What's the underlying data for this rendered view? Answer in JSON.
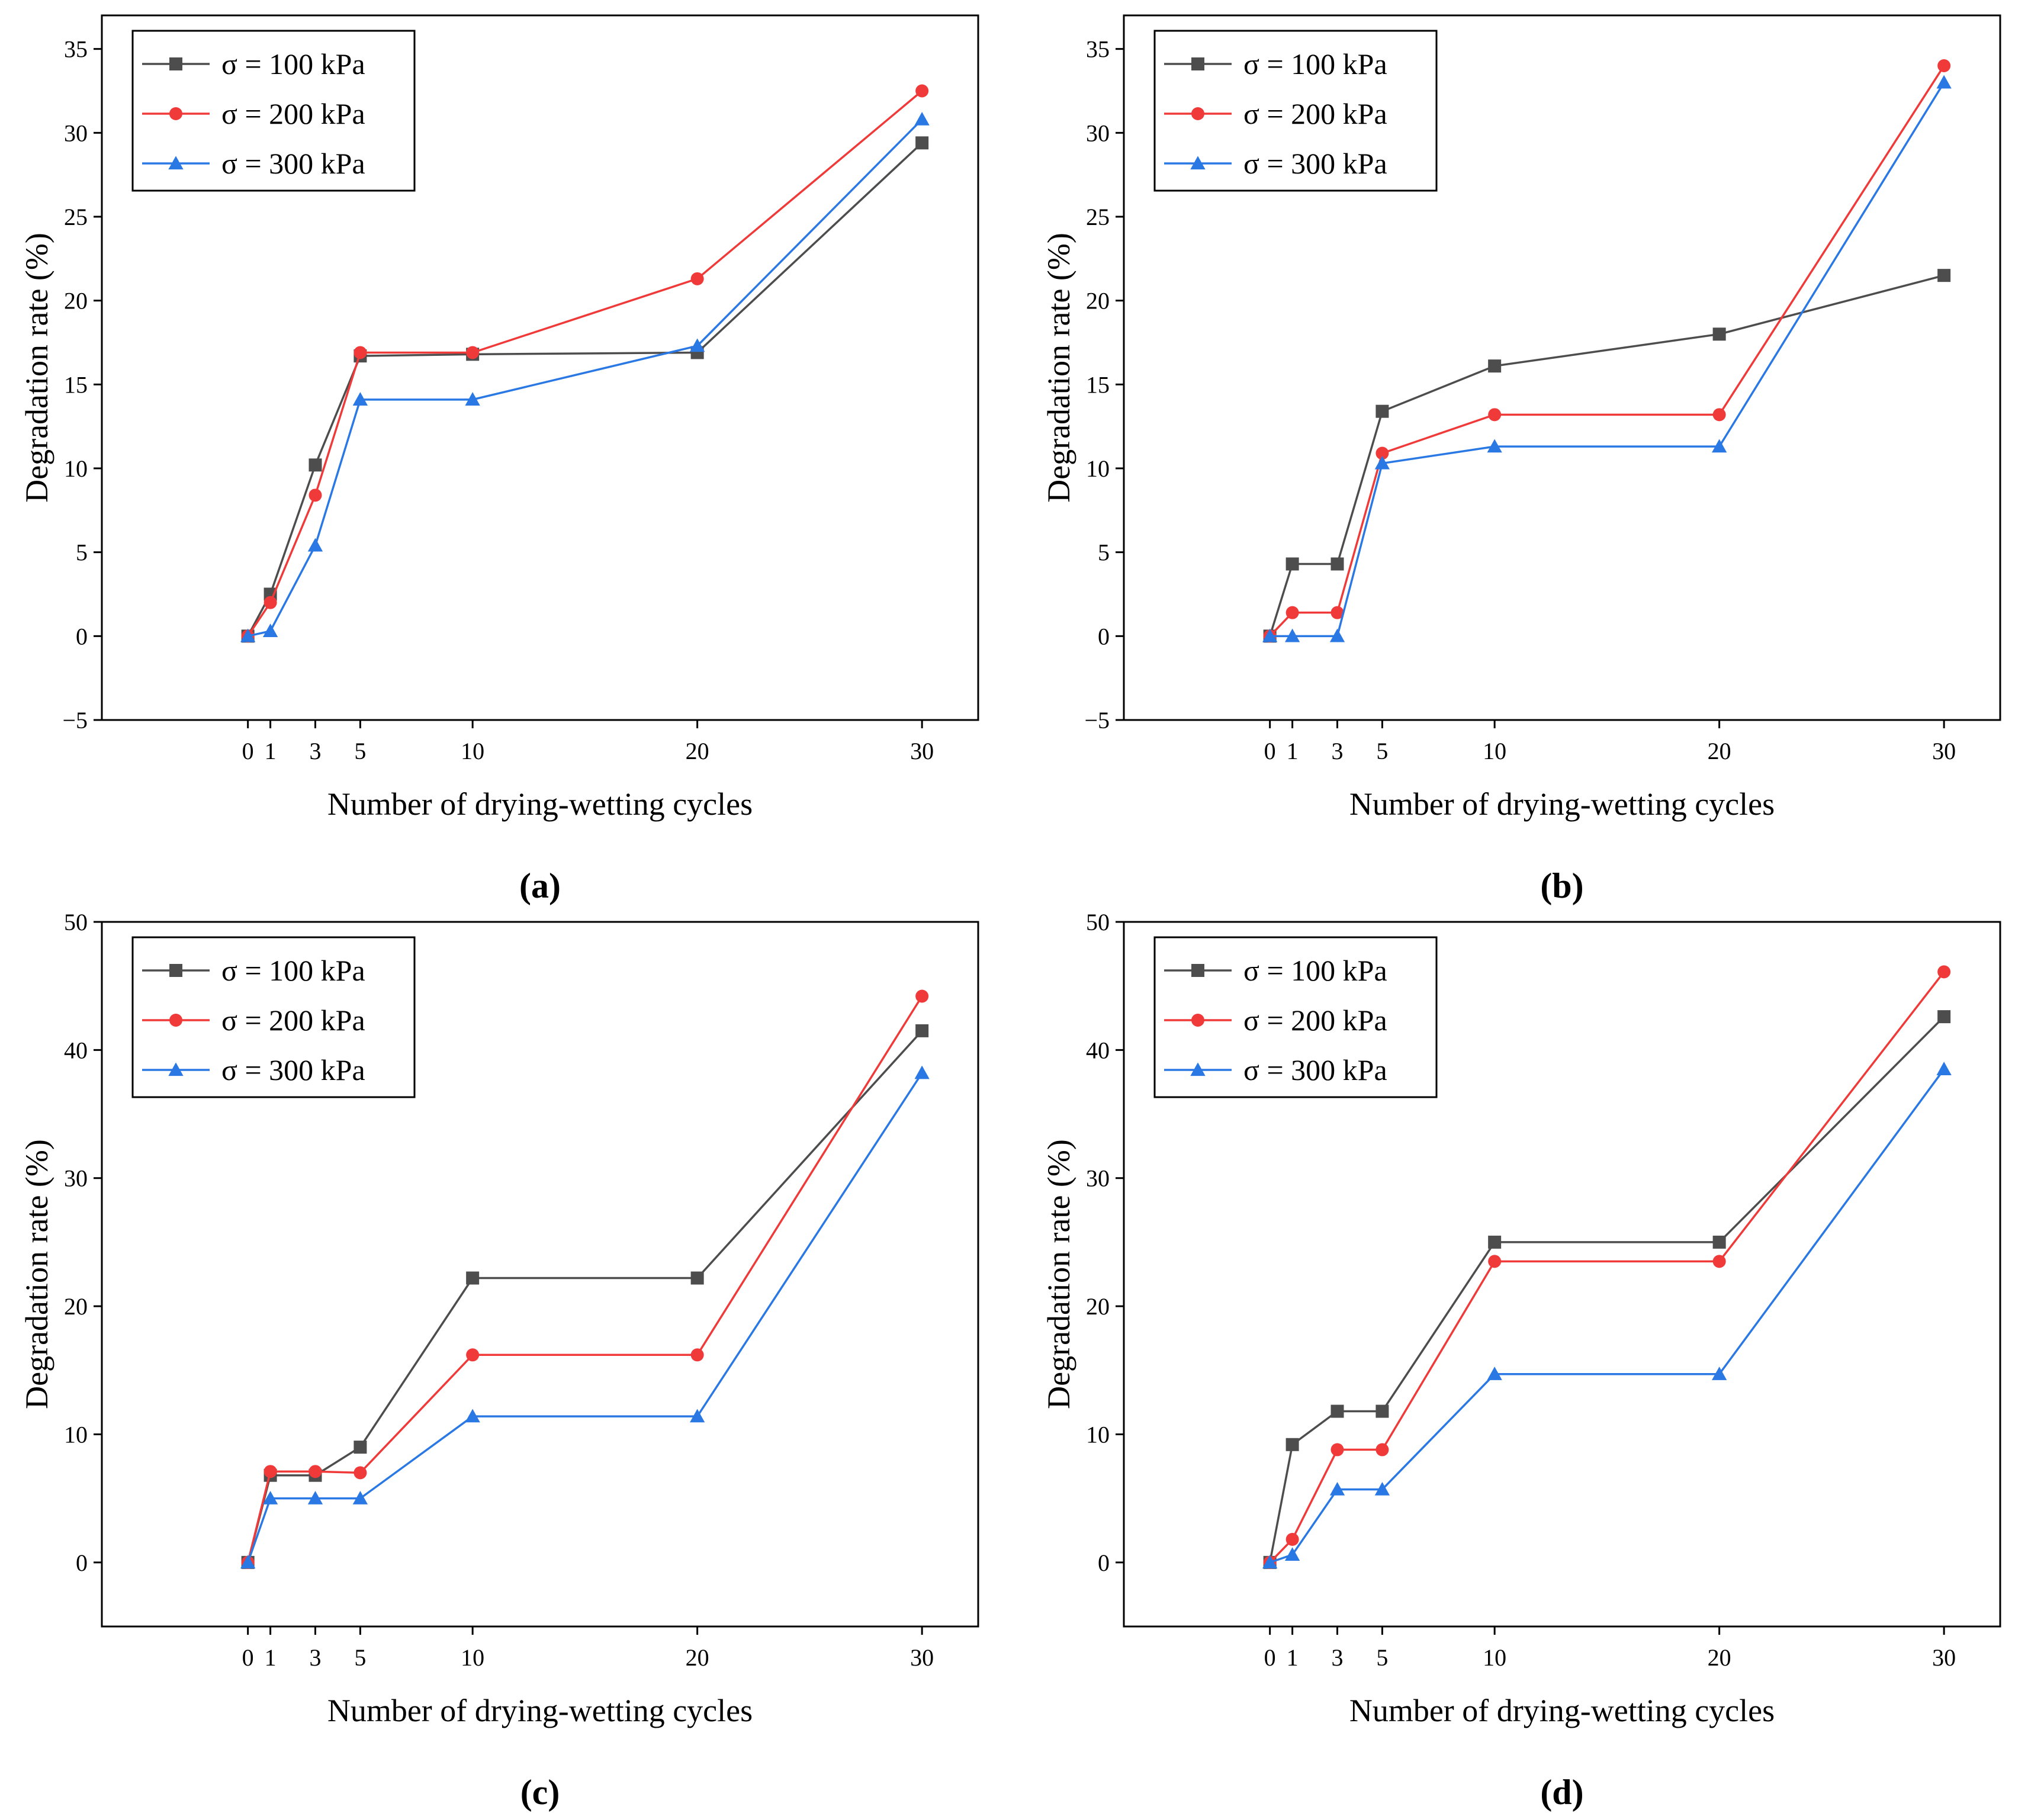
{
  "colors": {
    "s100": "#4d4d4d",
    "s200": "#f03a3a",
    "s300": "#2a78e4",
    "axis": "#000000"
  },
  "chart_data": [
    {
      "panel": "(a)",
      "type": "line",
      "xlabel": "Number of drying-wetting cycles",
      "ylabel": "Degradation rate (%)",
      "x": [
        0,
        1,
        3,
        5,
        10,
        20,
        30
      ],
      "xlim": [
        -6.5,
        32.5
      ],
      "ylim": [
        -5,
        37
      ],
      "yticks": [
        -5,
        0,
        5,
        10,
        15,
        20,
        25,
        30,
        35
      ],
      "legend": "top-left",
      "series": [
        {
          "name": "σ = 100 kPa",
          "marker": "square",
          "values": [
            0,
            2.5,
            10.2,
            16.7,
            16.8,
            16.9,
            29.4
          ]
        },
        {
          "name": "σ = 200 kPa",
          "marker": "circle",
          "values": [
            0,
            2.0,
            8.4,
            16.9,
            16.9,
            21.3,
            32.5
          ]
        },
        {
          "name": "σ = 300 kPa",
          "marker": "triangle",
          "values": [
            0,
            0.3,
            5.4,
            14.1,
            14.1,
            17.3,
            30.8
          ]
        }
      ]
    },
    {
      "panel": "(b)",
      "type": "line",
      "xlabel": "Number of drying-wetting cycles",
      "ylabel": "Degradation rate (%)",
      "x": [
        0,
        1,
        3,
        5,
        10,
        20,
        30
      ],
      "xlim": [
        -6.5,
        32.5
      ],
      "ylim": [
        -5,
        37
      ],
      "yticks": [
        -5,
        0,
        5,
        10,
        15,
        20,
        25,
        30,
        35
      ],
      "legend": "top-left",
      "series": [
        {
          "name": "σ = 100 kPa",
          "marker": "square",
          "values": [
            0,
            4.3,
            4.3,
            13.4,
            16.1,
            18.0,
            21.5
          ]
        },
        {
          "name": "σ = 200 kPa",
          "marker": "circle",
          "values": [
            0,
            1.4,
            1.4,
            10.9,
            13.2,
            13.2,
            34.0
          ]
        },
        {
          "name": "σ = 300 kPa",
          "marker": "triangle",
          "values": [
            0,
            0,
            0,
            10.3,
            11.3,
            11.3,
            33.0
          ]
        }
      ]
    },
    {
      "panel": "(c)",
      "type": "line",
      "xlabel": "Number of drying-wetting cycles",
      "ylabel": "Degradation rate (%)",
      "x": [
        0,
        1,
        3,
        5,
        10,
        20,
        30
      ],
      "xlim": [
        -6.5,
        32.5
      ],
      "ylim": [
        -5,
        50
      ],
      "yticks": [
        0,
        10,
        20,
        30,
        40,
        50
      ],
      "legend": "top-left",
      "series": [
        {
          "name": "σ = 100 kPa",
          "marker": "square",
          "values": [
            0,
            6.8,
            6.8,
            9.0,
            22.2,
            22.2,
            41.5
          ]
        },
        {
          "name": "σ = 200 kPa",
          "marker": "circle",
          "values": [
            0,
            7.1,
            7.1,
            7.0,
            16.2,
            16.2,
            44.2
          ]
        },
        {
          "name": "σ = 300 kPa",
          "marker": "triangle",
          "values": [
            0,
            5.0,
            5.0,
            5.0,
            11.4,
            11.4,
            38.2
          ]
        }
      ]
    },
    {
      "panel": "(d)",
      "type": "line",
      "xlabel": "Number of drying-wetting cycles",
      "ylabel": "Degradation rate (%)",
      "x": [
        0,
        1,
        3,
        5,
        10,
        20,
        30
      ],
      "xlim": [
        -6.5,
        32.5
      ],
      "ylim": [
        -5,
        50
      ],
      "yticks": [
        0,
        10,
        20,
        30,
        40,
        50
      ],
      "legend": "top-left",
      "series": [
        {
          "name": "σ = 100 kPa",
          "marker": "square",
          "values": [
            0,
            9.2,
            11.8,
            11.8,
            25.0,
            25.0,
            42.6
          ]
        },
        {
          "name": "σ = 200 kPa",
          "marker": "circle",
          "values": [
            0,
            1.8,
            8.8,
            8.8,
            23.5,
            23.5,
            46.1
          ]
        },
        {
          "name": "σ = 300 kPa",
          "marker": "triangle",
          "values": [
            0,
            0.6,
            5.7,
            5.7,
            14.7,
            14.7,
            38.5
          ]
        }
      ]
    }
  ]
}
